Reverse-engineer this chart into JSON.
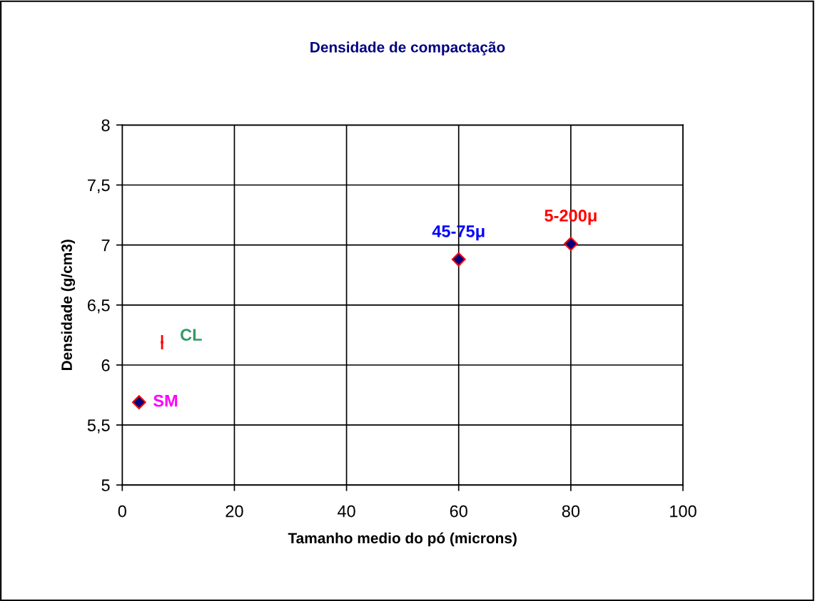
{
  "chart_data": {
    "type": "scatter",
    "title": "Densidade de compactação",
    "xlabel": "Tamanho medio do pó (microns)",
    "ylabel": "Densidade (g/cm3)",
    "series": [
      {
        "x": [
          3,
          60,
          80
        ],
        "values": [
          5.69,
          6.88,
          7.01
        ],
        "color": "#000080",
        "marker": "diamond"
      },
      {
        "x": [
          7.1
        ],
        "values": [
          6.19
        ],
        "errors": [
          0.06
        ],
        "color": "#ff0000",
        "marker": "square"
      }
    ],
    "annotations": [
      {
        "text": "SM",
        "x": 3,
        "y": 5.69
      },
      {
        "text": "CL",
        "x": 7.1,
        "y": 6.19
      },
      {
        "text": "45-75μ",
        "x": 60,
        "y": 6.88
      },
      {
        "text": "5-200μ",
        "x": 80,
        "y": 7.01
      }
    ],
    "xlim": [
      0,
      100
    ],
    "xticks": [
      0,
      20,
      40,
      60,
      80,
      100
    ],
    "ylim": [
      5,
      8
    ],
    "yticks": [
      5,
      {
        "value": 5.5,
        "label": "5,5"
      },
      6,
      {
        "value": 6.5,
        "label": "6,5"
      },
      7,
      {
        "value": 7.5,
        "label": "7,5"
      },
      8
    ],
    "grid": true,
    "legend": false
  }
}
